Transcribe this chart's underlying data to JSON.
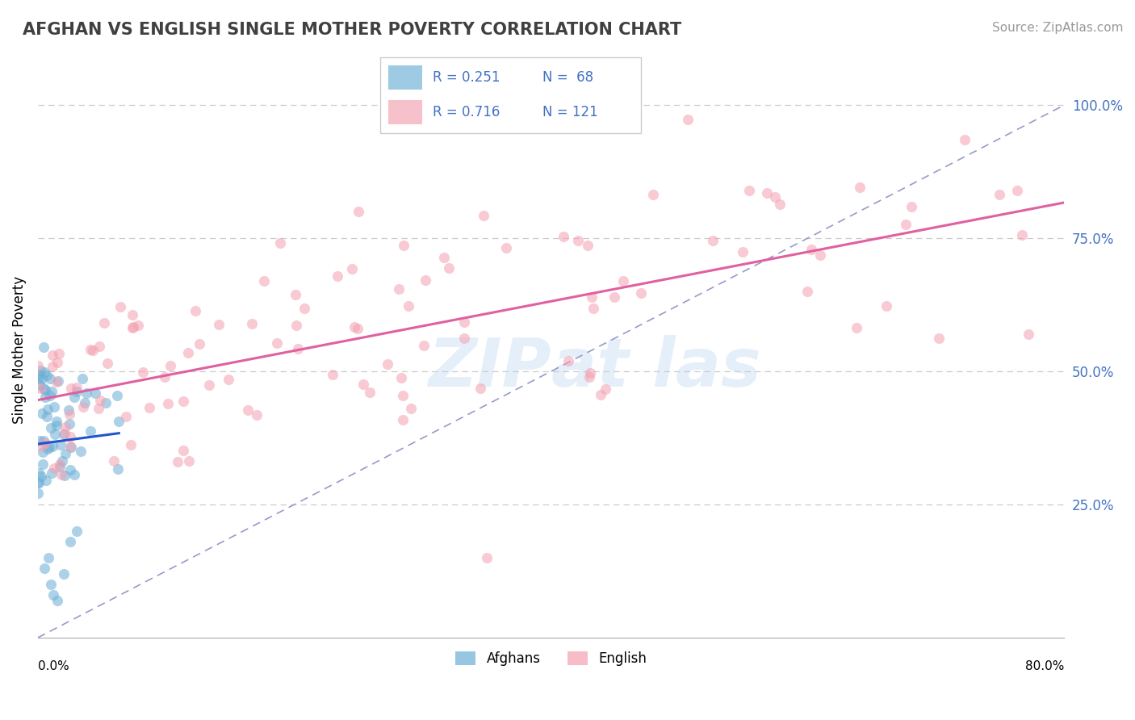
{
  "title": "AFGHAN VS ENGLISH SINGLE MOTHER POVERTY CORRELATION CHART",
  "source": "Source: ZipAtlas.com",
  "ylabel": "Single Mother Poverty",
  "afghan_color": "#6baed6",
  "english_color": "#f4a0b0",
  "regression_afghan_color": "#2255cc",
  "regression_english_color": "#e060a0",
  "diagonal_color": "#9999cc",
  "afghan_R": 0.251,
  "afghan_N": 68,
  "english_R": 0.716,
  "english_N": 121,
  "ytick_color": "#4472c4",
  "watermark_color": "#cce0f5"
}
